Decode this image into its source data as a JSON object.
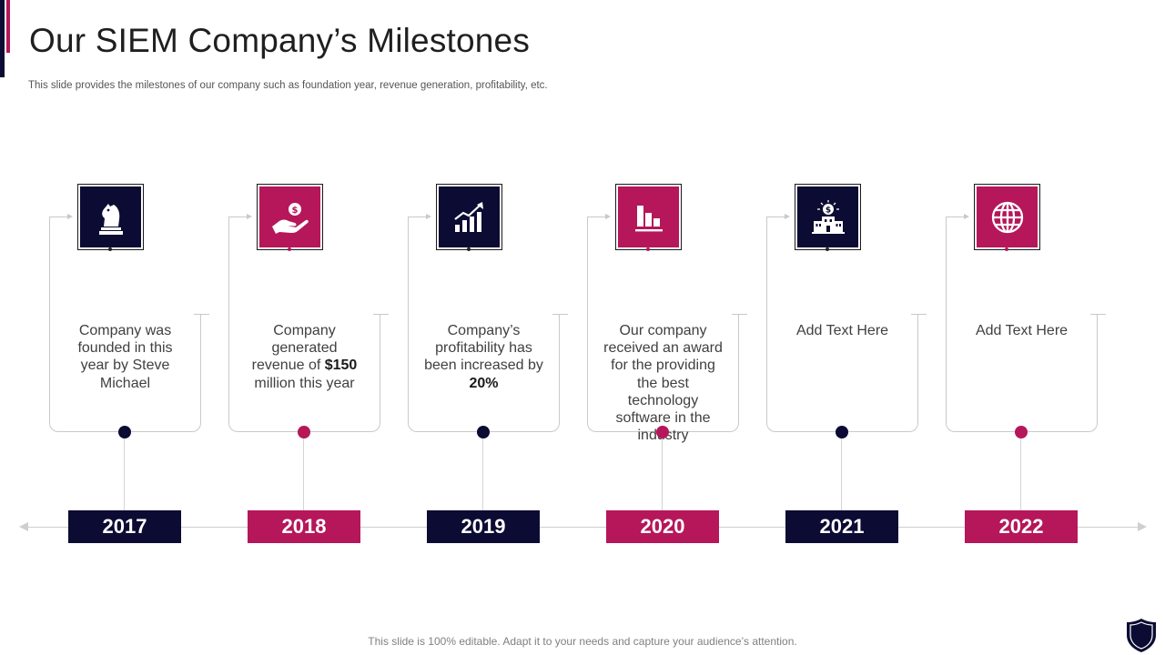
{
  "slide": {
    "title": "Our SIEM Company’s Milestones",
    "subtitle": "This slide provides the milestones of our company such as foundation year, revenue generation, profitability, etc.",
    "footer": "This slide is 100% editable. Adapt it to your needs and capture your audience’s attention."
  },
  "colors": {
    "navy": "#0b0b33",
    "magenta": "#b5175a"
  },
  "milestones": [
    {
      "year": "2017",
      "color": "navy",
      "icon": "chess-knight-icon",
      "lines": [
        {
          "t": "Company was founded in this year by Steve Michael"
        }
      ]
    },
    {
      "year": "2018",
      "color": "magenta",
      "icon": "money-hand-icon",
      "lines": [
        {
          "t": "Company generated revenue of "
        },
        {
          "b": "$150"
        },
        {
          "t": " million this year"
        }
      ]
    },
    {
      "year": "2019",
      "color": "navy",
      "icon": "growth-chart-icon",
      "lines": [
        {
          "t": "Company’s profitability has been increased by "
        },
        {
          "b": "20%"
        }
      ]
    },
    {
      "year": "2020",
      "color": "magenta",
      "icon": "bar-chart-icon",
      "lines": [
        {
          "t": "Our company received an award for the providing the best technology software in the industry"
        }
      ]
    },
    {
      "year": "2021",
      "color": "navy",
      "icon": "bank-icon",
      "lines": [
        {
          "t": "Add Text Here"
        }
      ]
    },
    {
      "year": "2022",
      "color": "magenta",
      "icon": "globe-icon",
      "lines": [
        {
          "t": "Add Text Here"
        }
      ]
    }
  ]
}
